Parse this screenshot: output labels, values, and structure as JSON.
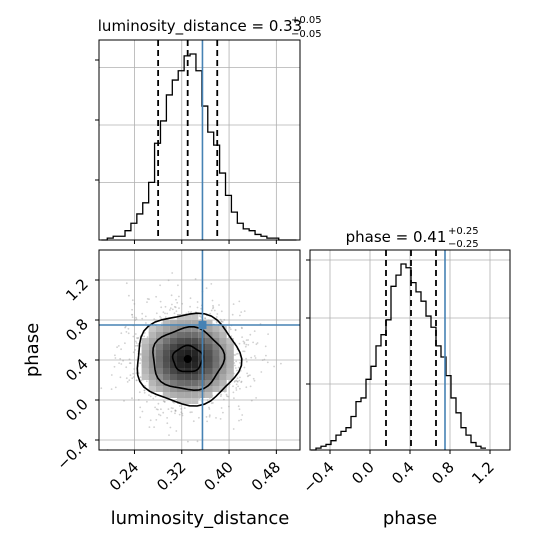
{
  "chart_data": [
    {
      "type": "histogram",
      "panel": "luminosity_distance",
      "title": {
        "param": "luminosity_distance",
        "value": "0.33",
        "plus": "+0.05",
        "minus": "−0.05"
      },
      "xlim": [
        0.18,
        0.52
      ],
      "bins": [
        0.184,
        0.194,
        0.204,
        0.214,
        0.224,
        0.234,
        0.244,
        0.254,
        0.264,
        0.274,
        0.284,
        0.294,
        0.304,
        0.314,
        0.324,
        0.334,
        0.344,
        0.354,
        0.364,
        0.374,
        0.384,
        0.394,
        0.404,
        0.414,
        0.424,
        0.434,
        0.444,
        0.454,
        0.464,
        0.474,
        0.484,
        0.494,
        0.504,
        0.514
      ],
      "counts": [
        0,
        1,
        2,
        2,
        5,
        9,
        14,
        20,
        31,
        52,
        64,
        78,
        86,
        91,
        99,
        100,
        91,
        72,
        58,
        51,
        36,
        24,
        15,
        9,
        6,
        5,
        3,
        2,
        1,
        1,
        0,
        0,
        0
      ],
      "quantiles": [
        0.28,
        0.33,
        0.38
      ],
      "truth": 0.355,
      "color": "#000000",
      "truth_color": "#4682b4"
    },
    {
      "type": "scatter",
      "panel": "luminosity_distance vs phase",
      "x": [
        0.33
      ],
      "y": [
        0.41
      ],
      "xlim": [
        0.18,
        0.52
      ],
      "ylim": [
        -0.5,
        1.5
      ],
      "xticks": [
        "0.24",
        "0.32",
        "0.40",
        "0.48"
      ],
      "yticks": [
        "−0.4",
        "0.0",
        "0.4",
        "0.8",
        "1.2"
      ],
      "xlabel": "luminosity_distance",
      "ylabel": "phase",
      "contour_levels": [
        0.39,
        0.86,
        0.99
      ],
      "truth_x": 0.355,
      "truth_y": 0.75,
      "truth_color": "#4682b4"
    },
    {
      "type": "histogram",
      "panel": "phase",
      "title": {
        "param": "phase",
        "value": "0.41",
        "plus": "+0.25",
        "minus": "−0.25"
      },
      "xlim": [
        -0.6,
        1.4
      ],
      "bins": [
        -0.59,
        -0.54,
        -0.49,
        -0.44,
        -0.39,
        -0.34,
        -0.29,
        -0.24,
        -0.19,
        -0.14,
        -0.09,
        -0.04,
        0.01,
        0.06,
        0.11,
        0.16,
        0.21,
        0.26,
        0.31,
        0.36,
        0.41,
        0.46,
        0.51,
        0.56,
        0.61,
        0.66,
        0.71,
        0.76,
        0.81,
        0.86,
        0.91,
        0.96,
        1.01,
        1.06,
        1.11,
        1.16
      ],
      "counts": [
        0,
        1,
        2,
        3,
        5,
        8,
        10,
        12,
        18,
        26,
        28,
        38,
        45,
        56,
        62,
        70,
        88,
        94,
        100,
        98,
        90,
        85,
        80,
        72,
        66,
        56,
        50,
        40,
        28,
        20,
        12,
        8,
        4,
        2,
        1
      ],
      "quantiles": [
        0.16,
        0.41,
        0.66
      ],
      "truth": 0.75,
      "xticks": [
        "−0.4",
        "0.0",
        "0.4",
        "0.8",
        "1.2"
      ],
      "xlabel": "phase",
      "color": "#000000",
      "truth_color": "#4682b4"
    }
  ]
}
